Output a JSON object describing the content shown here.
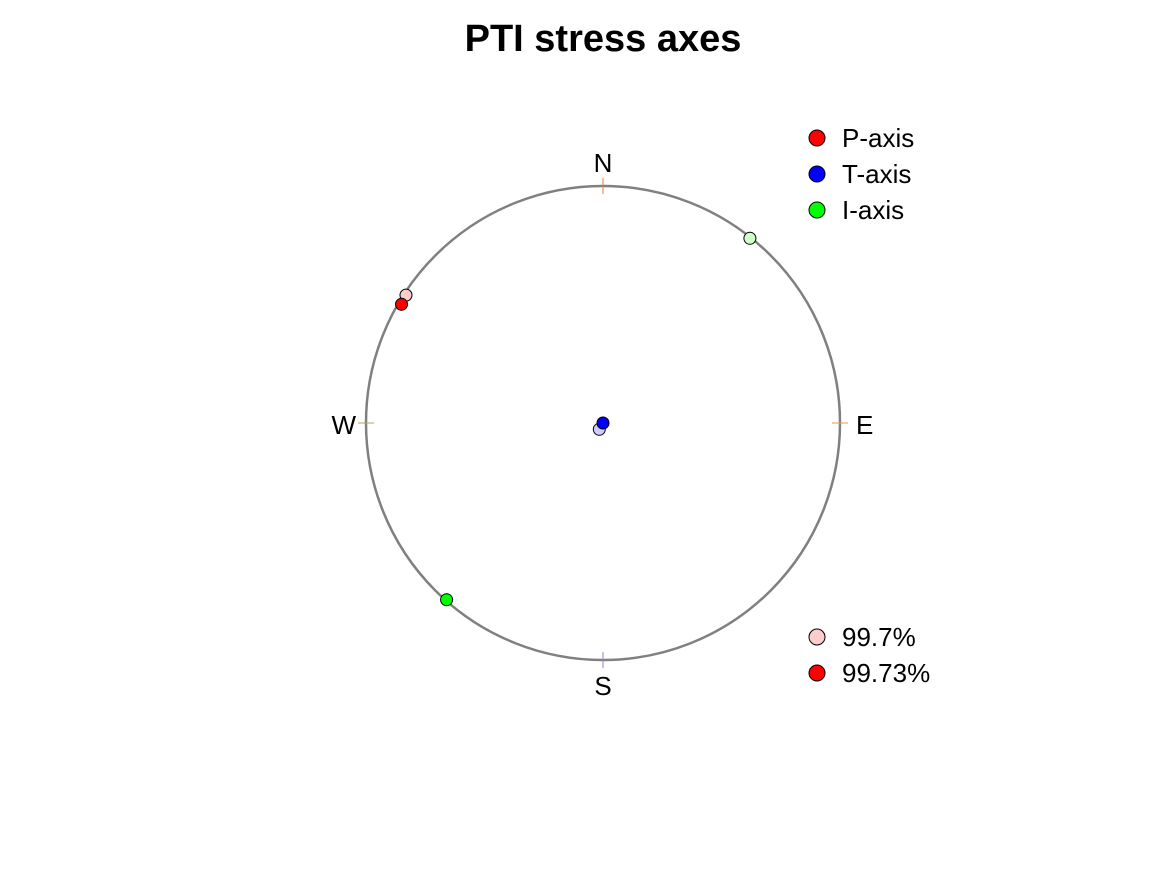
{
  "chart_data": {
    "type": "scatter",
    "projection": "stereonet",
    "title": "PTI stress axes",
    "directions": {
      "north": "N",
      "east": "E",
      "south": "S",
      "west": "W"
    },
    "colors": {
      "circle": "#808080",
      "north_tick": "#e87a3d",
      "east_tick": "#d9a23d",
      "south_tick": "#9c7fbf",
      "west_tick": "#b5a64a",
      "point_outline": "#000000"
    },
    "series": [
      {
        "name": "P-axis",
        "color": "#ff0000",
        "confidence": "99.73%",
        "trend": 300.5,
        "plunge": 1.5
      },
      {
        "name": "P-axis",
        "color": "#ffcccc",
        "confidence": "99.7%",
        "trend": 303.0,
        "plunge": 1.0
      },
      {
        "name": "T-axis",
        "color": "#0000ff",
        "confidence": "99.73%",
        "trend": 0,
        "plunge": 90
      },
      {
        "name": "T-axis",
        "color": "#ccccff",
        "confidence": "99.7%",
        "trend": 210.0,
        "plunge": 87.5
      },
      {
        "name": "I-axis",
        "color": "#00ff00",
        "confidence": "99.73%",
        "trend": 221.5,
        "plunge": 0.5
      },
      {
        "name": "I-axis",
        "color": "#ccffcc",
        "confidence": "99.7%",
        "trend": 38.5,
        "plunge": 0.5
      }
    ],
    "legend_axes": {
      "placement": "top-right",
      "entries": [
        {
          "label": "P-axis",
          "color": "#ff0000"
        },
        {
          "label": "T-axis",
          "color": "#0000ff"
        },
        {
          "label": "I-axis",
          "color": "#00ff00"
        }
      ]
    },
    "legend_confidence": {
      "placement": "bottom-right",
      "entries": [
        {
          "label": "99.7%",
          "color": "#ffcccc"
        },
        {
          "label": "99.73%",
          "color": "#ff0000"
        }
      ]
    }
  }
}
